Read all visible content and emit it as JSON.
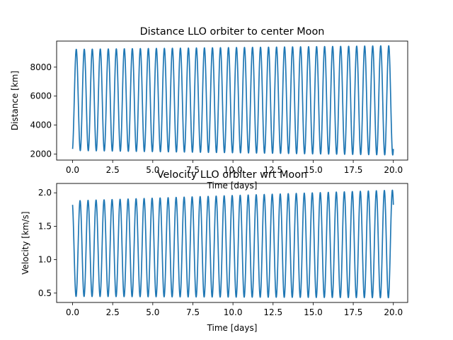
{
  "chart_data": [
    {
      "type": "line",
      "title": "Distance LLO orbiter to center Moon",
      "xlabel": "Time [days]",
      "ylabel": "Distance [km]",
      "xlim": [
        -0.995,
        20.895
      ],
      "ylim": [
        1580,
        9800
      ],
      "xticks": [
        0,
        2.5,
        5,
        7.5,
        10,
        12.5,
        15,
        17.5,
        20
      ],
      "xtick_labels": [
        "0.0",
        "2.5",
        "5.0",
        "7.5",
        "10.0",
        "12.5",
        "15.0",
        "17.5",
        "20.0"
      ],
      "yticks": [
        2000,
        4000,
        6000,
        8000
      ],
      "ytick_labels": [
        "2000",
        "4000",
        "6000",
        "8000"
      ],
      "grid": false,
      "color": "#1f77b4",
      "orbit": {
        "period_days": 0.5,
        "cycles": 40,
        "t_start": 0.0,
        "t_end": 20.0,
        "start_value": 2350,
        "start_trend": "rising",
        "peak_start": 9230,
        "peak_end": 9480,
        "trough_start": 2240,
        "trough_end": 1930
      }
    },
    {
      "type": "line",
      "title": "Velocity LLO orbiter wrt Moon",
      "xlabel": "Time [days]",
      "ylabel": "Velocity [km/s]",
      "xlim": [
        -0.995,
        20.895
      ],
      "ylim": [
        0.36,
        2.14
      ],
      "xticks": [
        0,
        2.5,
        5,
        7.5,
        10,
        12.5,
        15,
        17.5,
        20
      ],
      "xtick_labels": [
        "0.0",
        "2.5",
        "5.0",
        "7.5",
        "10.0",
        "12.5",
        "15.0",
        "17.5",
        "20.0"
      ],
      "yticks": [
        0.5,
        1.0,
        1.5,
        2.0
      ],
      "ytick_labels": [
        "0.5",
        "1.0",
        "1.5",
        "2.0"
      ],
      "grid": false,
      "color": "#1f77b4",
      "orbit": {
        "period_days": 0.5,
        "cycles": 40,
        "t_start": 0.0,
        "t_end": 20.0,
        "start_value": 1.82,
        "start_trend": "falling",
        "peak_start": 1.88,
        "peak_end": 2.04,
        "trough_start": 0.45,
        "trough_end": 0.43
      }
    }
  ]
}
